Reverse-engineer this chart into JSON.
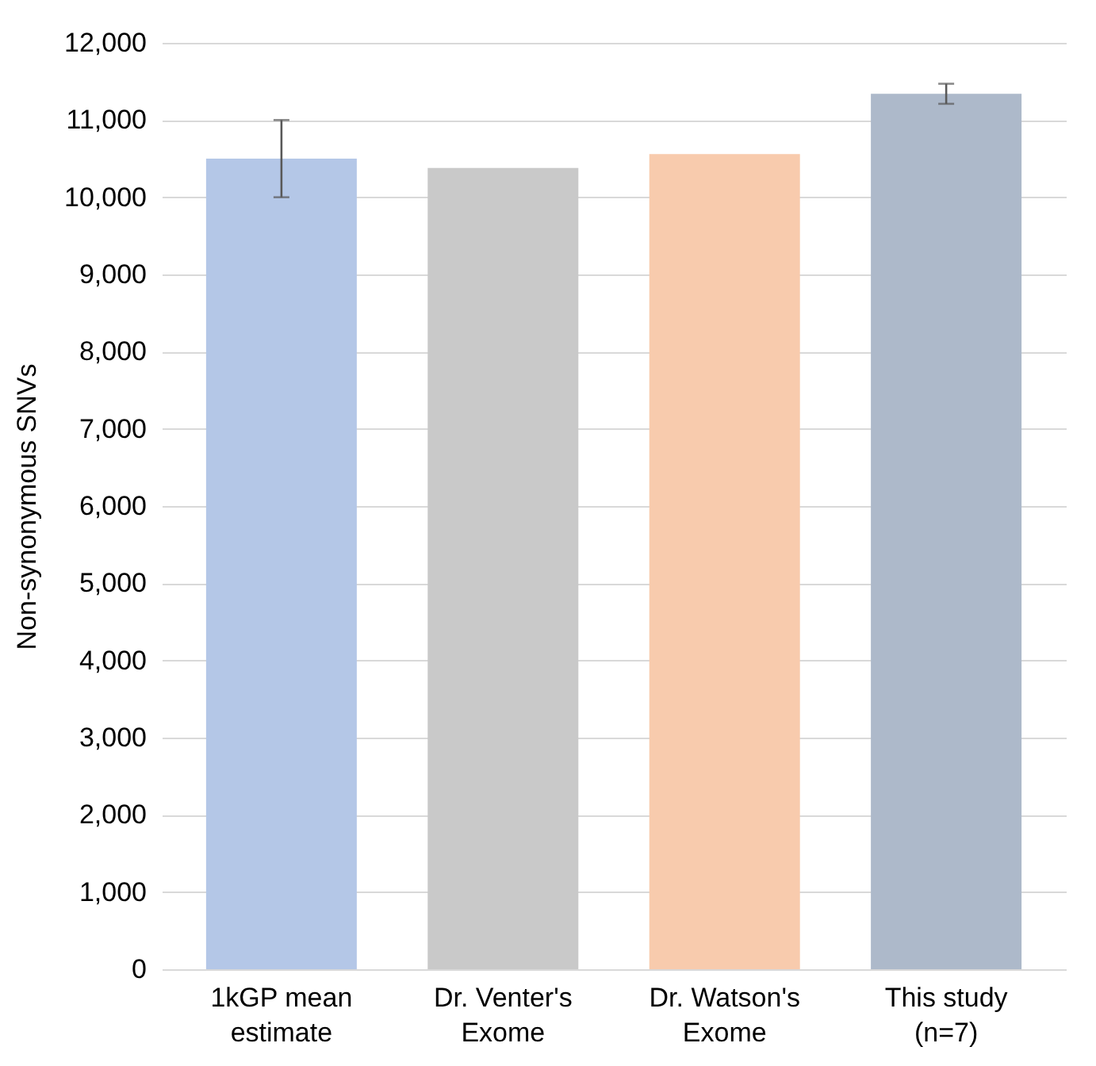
{
  "chart_data": {
    "type": "bar",
    "ylabel": "Non-synonymous SNVs",
    "categories": [
      "1kGP mean estimate",
      "Dr. Venter's Exome",
      "Dr. Watson's Exome",
      "This study (n=7)"
    ],
    "values": [
      10500,
      10380,
      10560,
      11340
    ],
    "colors": [
      "#b4c7e7",
      "#c9c9c9",
      "#f8cbad",
      "#adb9ca"
    ],
    "errors": [
      500,
      null,
      null,
      130
    ],
    "ylim": [
      0,
      12000
    ],
    "yticks": [
      0,
      {
        "value": 1000,
        "label": "1,000"
      },
      {
        "value": 2000,
        "label": "2,000"
      },
      {
        "value": 3000,
        "label": "3,000"
      },
      {
        "value": 4000,
        "label": "4,000"
      },
      {
        "value": 5000,
        "label": "5,000"
      },
      {
        "value": 6000,
        "label": "6,000"
      },
      {
        "value": 7000,
        "label": "7,000"
      },
      {
        "value": 8000,
        "label": "8,000"
      },
      {
        "value": 9000,
        "label": "9,000"
      },
      {
        "value": 10000,
        "label": "10,000"
      },
      {
        "value": 11000,
        "label": "11,000"
      },
      {
        "value": 12000,
        "label": "12,000"
      }
    ],
    "grid": "y"
  }
}
